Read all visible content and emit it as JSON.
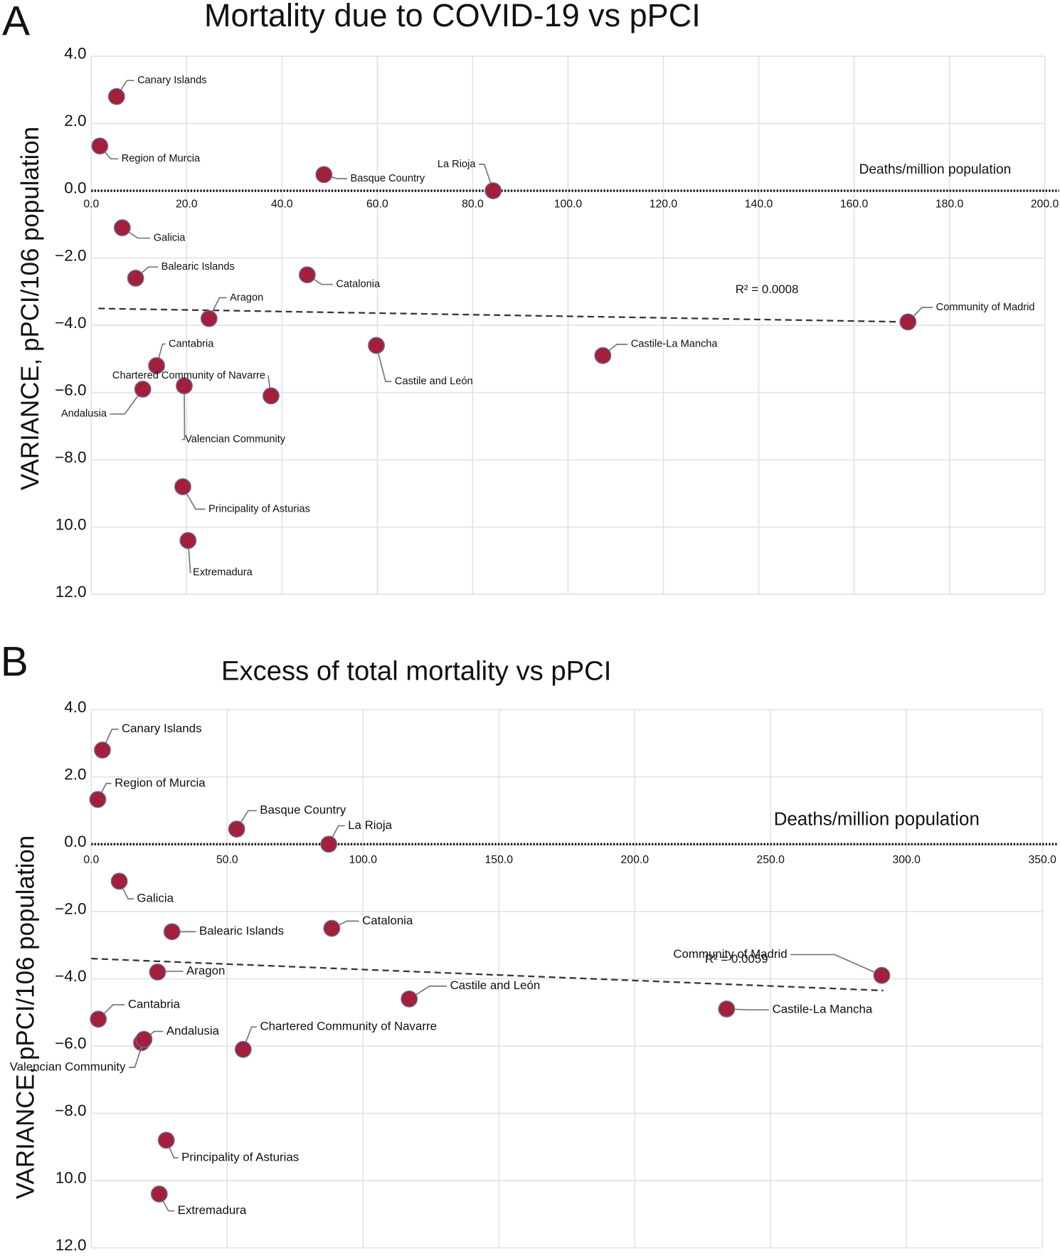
{
  "chart_data": [
    {
      "type": "scatter",
      "panel": "A",
      "title": "Mortality due to COVID-19 vs pPCI",
      "x_label": "Deaths/million population",
      "y_label": "VARIANCE, pPCI/106 population",
      "annotation": "R² = 0.0008",
      "color": "#a31f3a",
      "grid": true,
      "xlim": [
        0,
        200
      ],
      "ylim": [
        -12,
        4
      ],
      "xticks": [
        {
          "value": 0,
          "label": "0.0"
        },
        {
          "value": 20,
          "label": "20.0"
        },
        {
          "value": 40,
          "label": "40.0"
        },
        {
          "value": 60,
          "label": "60.0"
        },
        {
          "value": 80,
          "label": "80.0"
        },
        {
          "value": 100,
          "label": "100.0"
        },
        {
          "value": 120,
          "label": "120.0"
        },
        {
          "value": 140,
          "label": "140.0"
        },
        {
          "value": 160,
          "label": "160.0"
        },
        {
          "value": 180,
          "label": "180.0"
        },
        {
          "value": 200,
          "label": "200.0"
        }
      ],
      "yticks": [
        {
          "value": 4,
          "label": "4.0"
        },
        {
          "value": 2,
          "label": "2.0"
        },
        {
          "value": 0,
          "label": "0.0"
        },
        {
          "value": -2,
          "label": "−2.0"
        },
        {
          "value": -4,
          "label": "−4.0"
        },
        {
          "value": -6,
          "label": "−6.0"
        },
        {
          "value": -8,
          "label": "−8.0"
        },
        {
          "value": -10,
          "label": "10.0"
        },
        {
          "value": -12,
          "label": "12.0"
        }
      ],
      "labels": [
        "Canary Islands",
        "Region of Murcia",
        "Basque Country",
        "La Rioja",
        "Galicia",
        "Balearic Islands",
        "Catalonia",
        "Aragon",
        "Community of Madrid",
        "Cantabria",
        "Castile and León",
        "Castile-La Mancha",
        "Andalusia",
        "Valencian Community",
        "Chartered Community of Navarre",
        "Principality of Asturias",
        "Extremadura"
      ],
      "x": [
        5.3,
        1.8,
        48.8,
        84.3,
        6.5,
        9.3,
        45.3,
        24.7,
        171.3,
        13.7,
        59.8,
        107.3,
        10.8,
        19.5,
        37.7,
        19.2,
        20.3
      ],
      "y": [
        2.8,
        1.33,
        0.48,
        0,
        -1.1,
        -2.6,
        -2.5,
        -3.8,
        -3.9,
        -5.2,
        -4.6,
        -4.9,
        -5.9,
        -5.8,
        -6.1,
        -8.8,
        -10.4
      ],
      "trend": {
        "x": [
          1.5,
          171
        ],
        "y": [
          -3.5,
          -3.9
        ]
      }
    },
    {
      "type": "scatter",
      "panel": "B",
      "title": "Excess of total mortality vs pPCI",
      "x_label": "Deaths/million population",
      "y_label": "VARIANCE, pPCI/106 population",
      "annotation": "R² = 0.0059",
      "color": "#a31f3a",
      "grid": true,
      "xlim": [
        0,
        350
      ],
      "ylim": [
        -12,
        4
      ],
      "xticks": [
        {
          "value": 0,
          "label": "0.0"
        },
        {
          "value": 50,
          "label": "50.0"
        },
        {
          "value": 100,
          "label": "100.0"
        },
        {
          "value": 150,
          "label": "150.0"
        },
        {
          "value": 200,
          "label": "200.0"
        },
        {
          "value": 250,
          "label": "250.0"
        },
        {
          "value": 300,
          "label": "300.0"
        },
        {
          "value": 350,
          "label": "350.0"
        }
      ],
      "yticks": [
        {
          "value": 4,
          "label": "4.0"
        },
        {
          "value": 2,
          "label": "2.0"
        },
        {
          "value": 0,
          "label": "0.0"
        },
        {
          "value": -2,
          "label": "−2.0"
        },
        {
          "value": -4,
          "label": "−4.0"
        },
        {
          "value": -6,
          "label": "−6.0"
        },
        {
          "value": -8,
          "label": "−8.0"
        },
        {
          "value": -10,
          "label": "10.0"
        },
        {
          "value": -12,
          "label": "12.0"
        }
      ],
      "labels": [
        "Canary Islands",
        "Region of Murcia",
        "Basque Country",
        "La Rioja",
        "Galicia",
        "Balearic Islands",
        "Catalonia",
        "Aragon",
        "Community of Madrid",
        "Cantabria",
        "Castile and León",
        "Castile-La Mancha",
        "Andalusia",
        "Valencian Community",
        "Chartered Community of Navarre",
        "Principality of Asturias",
        "Extremadura"
      ],
      "x": [
        4.1,
        2.4,
        53.5,
        87.4,
        10.3,
        29.7,
        88.5,
        24.4,
        290.9,
        2.6,
        117,
        233.8,
        18.5,
        19.4,
        55.9,
        27.6,
        25
      ],
      "y": [
        2.8,
        1.33,
        0.45,
        0,
        -1.1,
        -2.6,
        -2.5,
        -3.8,
        -3.9,
        -5.2,
        -4.6,
        -4.9,
        -5.9,
        -5.8,
        -6.1,
        -8.8,
        -10.4
      ],
      "trend": {
        "x": [
          0,
          291.5
        ],
        "y": [
          -3.4,
          -4.35
        ]
      }
    }
  ]
}
